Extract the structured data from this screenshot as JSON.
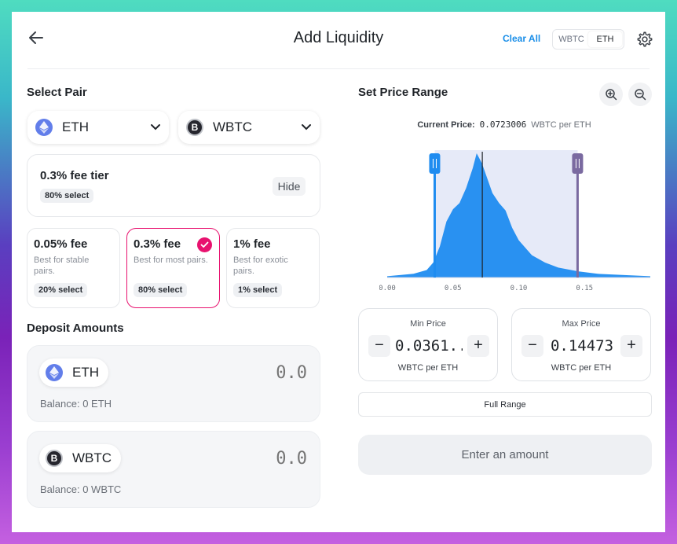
{
  "header": {
    "title": "Add Liquidity",
    "clear_all": "Clear All",
    "toggle": [
      "WBTC",
      "ETH"
    ],
    "active_toggle": "ETH"
  },
  "select_pair": {
    "title": "Select Pair",
    "token_a": {
      "symbol": "ETH",
      "icon": "eth-icon"
    },
    "token_b": {
      "symbol": "WBTC",
      "icon": "btc-icon"
    }
  },
  "fee_tier": {
    "title": "0.3% fee tier",
    "badge": "80% select",
    "hide_label": "Hide",
    "options": [
      {
        "title": "0.05% fee",
        "desc": "Best for stable pairs.",
        "badge": "20% select",
        "selected": false
      },
      {
        "title": "0.3% fee",
        "desc": "Best for most pairs.",
        "badge": "80% select",
        "selected": true
      },
      {
        "title": "1% fee",
        "desc": "Best for exotic pairs.",
        "badge": "1% select",
        "selected": false
      }
    ]
  },
  "deposit": {
    "title": "Deposit Amounts",
    "items": [
      {
        "symbol": "ETH",
        "amount": "0.0",
        "balance": "Balance: 0 ETH"
      },
      {
        "symbol": "WBTC",
        "amount": "0.0",
        "balance": "Balance: 0 WBTC"
      }
    ]
  },
  "price_range": {
    "title": "Set Price Range",
    "current_price_label": "Current Price:",
    "current_price_value": "0.0723006",
    "current_price_unit": "WBTC per ETH",
    "min": {
      "label": "Min Price",
      "value": "0.0361...",
      "unit": "WBTC per ETH",
      "minus": "−",
      "plus": "+"
    },
    "max": {
      "label": "Max Price",
      "value": "0.14473",
      "unit": "WBTC per ETH",
      "minus": "−",
      "plus": "+"
    },
    "full_range": "Full Range",
    "submit": "Enter an amount"
  },
  "chart_data": {
    "type": "area",
    "xlim": [
      0,
      0.2
    ],
    "x_ticks": [
      "0.00",
      "0.05",
      "0.10",
      "0.15"
    ],
    "current_price": 0.0723006,
    "range_min": 0.0361,
    "range_max": 0.14473,
    "x": [
      0.0,
      0.02,
      0.03,
      0.035,
      0.04,
      0.045,
      0.05,
      0.055,
      0.06,
      0.065,
      0.068,
      0.072,
      0.076,
      0.08,
      0.085,
      0.09,
      0.095,
      0.1,
      0.11,
      0.12,
      0.13,
      0.145,
      0.16,
      0.2
    ],
    "y": [
      0.01,
      0.03,
      0.06,
      0.12,
      0.25,
      0.45,
      0.55,
      0.6,
      0.72,
      0.88,
      1.0,
      0.92,
      0.8,
      0.68,
      0.6,
      0.54,
      0.4,
      0.3,
      0.18,
      0.12,
      0.08,
      0.05,
      0.03,
      0.01
    ],
    "colors": {
      "fill": "#1f8cf0",
      "selection": "#e6eaf8",
      "min_handle": "#1f8cf0",
      "max_handle": "#7a6aa0",
      "current_line": "#1f2328"
    }
  }
}
